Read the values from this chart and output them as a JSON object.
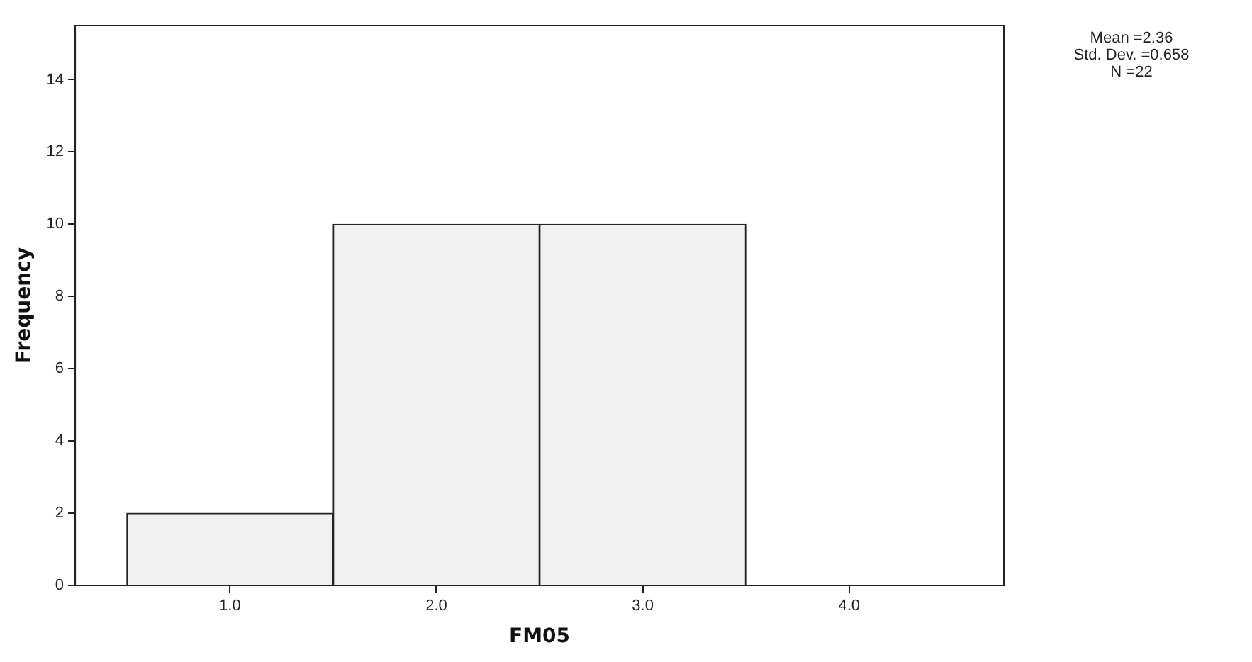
{
  "chart_data": {
    "type": "histogram",
    "xlabel": "FM05",
    "ylabel": "Frequency",
    "bins": [
      0.5,
      1.5,
      2.5,
      3.5
    ],
    "values": [
      2,
      10,
      10
    ],
    "color": "#f0f0f0",
    "xlim": [
      0.25,
      4.75
    ],
    "xticks": [
      {
        "value": 1,
        "label": "1.0"
      },
      {
        "value": 2,
        "label": "2.0"
      },
      {
        "value": 3,
        "label": "3.0"
      },
      {
        "value": 4,
        "label": "4.0"
      }
    ],
    "ylim": [
      0,
      15.5
    ],
    "yticks": [
      0,
      2,
      4,
      6,
      8,
      10,
      12,
      14
    ],
    "grid": false,
    "legend": false,
    "annotations": [
      "Mean =2.36",
      "Std. Dev. =0.658",
      "N =22"
    ]
  }
}
